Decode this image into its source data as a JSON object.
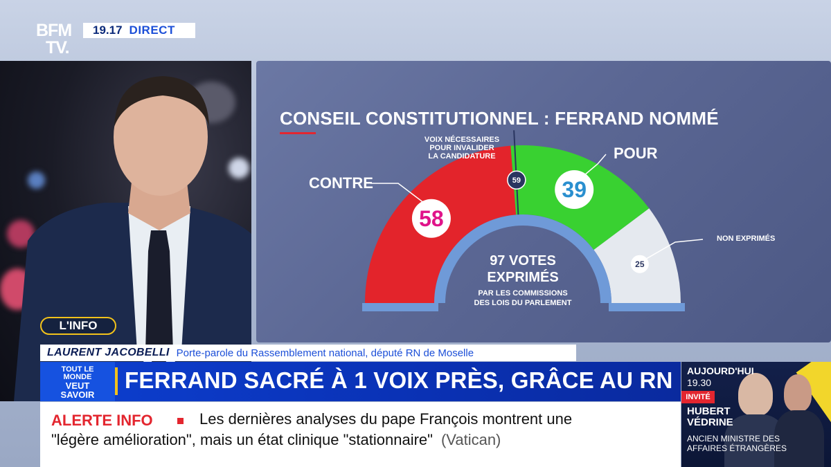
{
  "channel": {
    "logo_line1": "BFM",
    "logo_line2": "TV.",
    "time": "19.17",
    "live_label": "DIRECT"
  },
  "infographic": {
    "title": "CONSEIL CONSTITUTIONNEL : FERRAND NOMMÉ",
    "threshold_label_lines": [
      "VOIX NÉCESSAIRES",
      "POUR INVALIDER",
      "LA CANDIDATURE"
    ],
    "threshold_value": "59",
    "center_line1": "97 VOTES",
    "center_line2": "EXPRIMÉS",
    "center_sub1": "PAR LES COMMISSIONS",
    "center_sub2": "DES LOIS DU PARLEMENT",
    "against_label": "CONTRE",
    "against_value": "58",
    "for_label": "POUR",
    "for_value": "39",
    "abstain_label": "NON EXPRIMÉS",
    "abstain_value": "25",
    "colors": {
      "against": "#e3242b",
      "for": "#39d131",
      "abstain": "#e5e9ef",
      "inner_ring": "#6f9ad8"
    }
  },
  "chart_data": {
    "type": "pie",
    "categories": [
      "CONTRE",
      "POUR",
      "NON EXPRIMÉS"
    ],
    "values": [
      58,
      39,
      25
    ],
    "threshold": 59,
    "title": "CONSEIL CONSTITUTIONNEL : FERRAND NOMMÉ"
  },
  "lower_third": {
    "section_pill": "L'INFO",
    "guest_name": "LAURENT JACOBELLI",
    "guest_role": "Porte-parole du Rassemblement national, député RN de Moselle",
    "show_tag": [
      "TOUT LE",
      "MONDE",
      "VEUT",
      "SAVOIR"
    ],
    "headline": "FERRAND SACRÉ À 1 VOIX PRÈS, GRÂCE AU RN"
  },
  "ticker": {
    "alert_label": "ALERTE INFO",
    "line1": "Les dernières analyses du pape François montrent une",
    "line2": "\"légère amélioration\", mais un état clinique \"stationnaire\"",
    "source": "(Vatican)"
  },
  "promo": {
    "when": "AUJOURD'HUI",
    "time": "19.30",
    "guest_tag": "INVITÉ",
    "guest_name_line1": "HUBERT",
    "guest_name_line2": "VÉDRINE",
    "guest_title_line1": "ANCIEN MINISTRE DES",
    "guest_title_line2": "AFFAIRES ÉTRANGÈRES"
  }
}
